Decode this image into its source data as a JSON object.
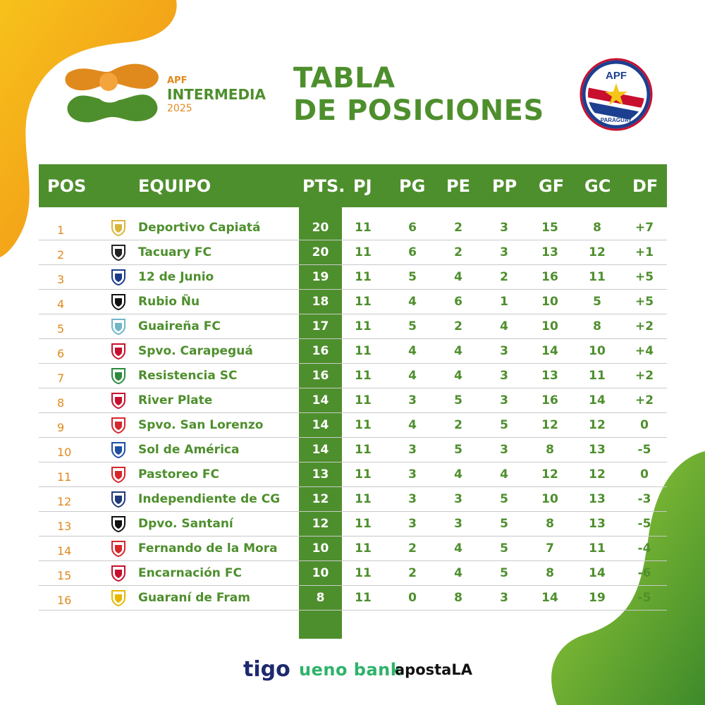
{
  "logo": {
    "apf": "APF",
    "name": "INTERMEDIA",
    "year": "2025"
  },
  "title": {
    "line1": "TABLA",
    "line2": "DE POSICIONES"
  },
  "badge": {
    "top": "APF",
    "bottom": "PARAGUAY"
  },
  "columns": {
    "pos": "POS",
    "team": "EQUIPO",
    "pts": "PTS.",
    "pj": "PJ",
    "pg": "PG",
    "pe": "PE",
    "pp": "PP",
    "gf": "GF",
    "gc": "GC",
    "df": "DF"
  },
  "rows": [
    {
      "pos": "1",
      "team": "Deportivo Capiatá",
      "pts": "20",
      "pj": "11",
      "pg": "6",
      "pe": "2",
      "pp": "3",
      "gf": "15",
      "gc": "8",
      "df": "+7",
      "crest_color": "#d9b53c"
    },
    {
      "pos": "2",
      "team": "Tacuary FC",
      "pts": "20",
      "pj": "11",
      "pg": "6",
      "pe": "2",
      "pp": "3",
      "gf": "13",
      "gc": "12",
      "df": "+1",
      "crest_color": "#222222"
    },
    {
      "pos": "3",
      "team": "12 de Junio",
      "pts": "19",
      "pj": "11",
      "pg": "5",
      "pe": "4",
      "pp": "2",
      "gf": "16",
      "gc": "11",
      "df": "+5",
      "crest_color": "#1b3a8c"
    },
    {
      "pos": "4",
      "team": "Rubio Ñu",
      "pts": "18",
      "pj": "11",
      "pg": "4",
      "pe": "6",
      "pp": "1",
      "gf": "10",
      "gc": "5",
      "df": "+5",
      "crest_color": "#111111"
    },
    {
      "pos": "5",
      "team": "Guaireña FC",
      "pts": "17",
      "pj": "11",
      "pg": "5",
      "pe": "2",
      "pp": "4",
      "gf": "10",
      "gc": "8",
      "df": "+2",
      "crest_color": "#6fb7c9"
    },
    {
      "pos": "6",
      "team": "Spvo. Carapeguá",
      "pts": "16",
      "pj": "11",
      "pg": "4",
      "pe": "4",
      "pp": "3",
      "gf": "14",
      "gc": "10",
      "df": "+4",
      "crest_color": "#c8102e"
    },
    {
      "pos": "7",
      "team": "Resistencia SC",
      "pts": "16",
      "pj": "11",
      "pg": "4",
      "pe": "4",
      "pp": "3",
      "gf": "13",
      "gc": "11",
      "df": "+2",
      "crest_color": "#2c8a3c"
    },
    {
      "pos": "8",
      "team": "River Plate",
      "pts": "14",
      "pj": "11",
      "pg": "3",
      "pe": "5",
      "pp": "3",
      "gf": "16",
      "gc": "14",
      "df": "+2",
      "crest_color": "#c8102e"
    },
    {
      "pos": "9",
      "team": "Spvo. San Lorenzo",
      "pts": "14",
      "pj": "11",
      "pg": "4",
      "pe": "2",
      "pp": "5",
      "gf": "12",
      "gc": "12",
      "df": "0",
      "crest_color": "#d6262c"
    },
    {
      "pos": "10",
      "team": "Sol de América",
      "pts": "14",
      "pj": "11",
      "pg": "3",
      "pe": "5",
      "pp": "3",
      "gf": "8",
      "gc": "13",
      "df": "-5",
      "crest_color": "#1e4fa3"
    },
    {
      "pos": "11",
      "team": "Pastoreo FC",
      "pts": "13",
      "pj": "11",
      "pg": "3",
      "pe": "4",
      "pp": "4",
      "gf": "12",
      "gc": "12",
      "df": "0",
      "crest_color": "#d6262c"
    },
    {
      "pos": "12",
      "team": "Independiente de CG",
      "pts": "12",
      "pj": "11",
      "pg": "3",
      "pe": "3",
      "pp": "5",
      "gf": "10",
      "gc": "13",
      "df": "-3",
      "crest_color": "#1f3a7a"
    },
    {
      "pos": "13",
      "team": "Dpvo. Santaní",
      "pts": "12",
      "pj": "11",
      "pg": "3",
      "pe": "3",
      "pp": "5",
      "gf": "8",
      "gc": "13",
      "df": "-5",
      "crest_color": "#111111"
    },
    {
      "pos": "14",
      "team": "Fernando de la Mora",
      "pts": "10",
      "pj": "11",
      "pg": "2",
      "pe": "4",
      "pp": "5",
      "gf": "7",
      "gc": "11",
      "df": "-4",
      "crest_color": "#d6262c"
    },
    {
      "pos": "15",
      "team": "Encarnación FC",
      "pts": "10",
      "pj": "11",
      "pg": "2",
      "pe": "4",
      "pp": "5",
      "gf": "8",
      "gc": "14",
      "df": "-6",
      "crest_color": "#c8102e"
    },
    {
      "pos": "16",
      "team": "Guaraní de Fram",
      "pts": "8",
      "pj": "11",
      "pg": "0",
      "pe": "8",
      "pp": "3",
      "gf": "14",
      "gc": "19",
      "df": "-5",
      "crest_color": "#e6b800"
    }
  ],
  "sponsors": {
    "tigo": "tigo",
    "ueno": "ueno bank",
    "aposta": "apostaLA"
  },
  "colors": {
    "green": "#4e8f2d",
    "orange": "#e08a1e"
  }
}
